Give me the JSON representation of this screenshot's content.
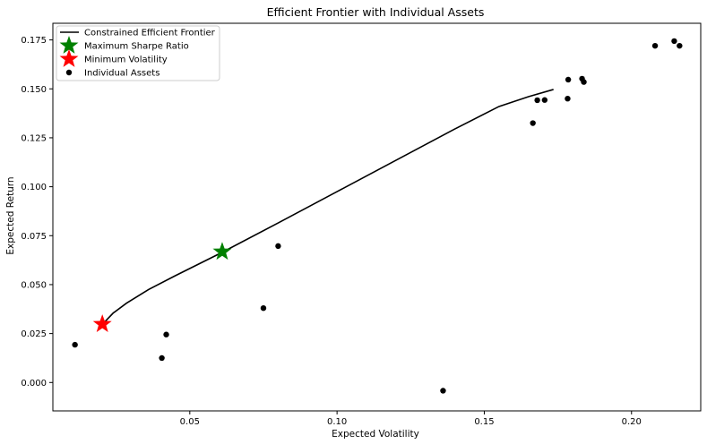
{
  "chart_data": {
    "type": "scatter",
    "title": "Efficient Frontier with Individual Assets",
    "xlabel": "Expected Volatility",
    "ylabel": "Expected Return",
    "xlim": [
      0.0035,
      0.2235
    ],
    "ylim": [
      -0.0145,
      0.1835
    ],
    "xticks": [
      0.05,
      0.1,
      0.15,
      0.2
    ],
    "xtick_labels": [
      "0.05",
      "0.10",
      "0.15",
      "0.20"
    ],
    "yticks": [
      0.0,
      0.025,
      0.05,
      0.075,
      0.1,
      0.125,
      0.15,
      0.175
    ],
    "ytick_labels": [
      "0.000",
      "0.025",
      "0.050",
      "0.075",
      "0.100",
      "0.125",
      "0.150",
      "0.175"
    ],
    "grid": false,
    "legend_position": "top-left",
    "frontier": {
      "name": "Constrained Efficient Frontier",
      "color": "#000000",
      "points": [
        [
          0.0205,
          0.03
        ],
        [
          0.024,
          0.0355
        ],
        [
          0.0285,
          0.0405
        ],
        [
          0.036,
          0.0475
        ],
        [
          0.045,
          0.0545
        ],
        [
          0.061,
          0.0665
        ],
        [
          0.08,
          0.0815
        ],
        [
          0.1,
          0.0975
        ],
        [
          0.12,
          0.1135
        ],
        [
          0.14,
          0.1295
        ],
        [
          0.155,
          0.141
        ],
        [
          0.165,
          0.146
        ],
        [
          0.1735,
          0.1497
        ]
      ]
    },
    "max_sharpe": {
      "name": "Maximum Sharpe Ratio",
      "color": "#008000",
      "x": 0.061,
      "y": 0.0668
    },
    "min_volatility": {
      "name": "Minimum Volatility",
      "color": "#ff0000",
      "x": 0.0203,
      "y": 0.0298
    },
    "assets": {
      "name": "Individual Assets",
      "color": "#000000",
      "points": [
        [
          0.011,
          0.0193
        ],
        [
          0.0405,
          0.0125
        ],
        [
          0.042,
          0.0245
        ],
        [
          0.075,
          0.038
        ],
        [
          0.08,
          0.0697
        ],
        [
          0.136,
          -0.0042
        ],
        [
          0.1665,
          0.1325
        ],
        [
          0.168,
          0.1442
        ],
        [
          0.1705,
          0.1443
        ],
        [
          0.1785,
          0.1547
        ],
        [
          0.1783,
          0.145
        ],
        [
          0.1832,
          0.1552
        ],
        [
          0.1838,
          0.1535
        ],
        [
          0.208,
          0.172
        ],
        [
          0.2145,
          0.1744
        ],
        [
          0.2163,
          0.172
        ]
      ]
    }
  }
}
